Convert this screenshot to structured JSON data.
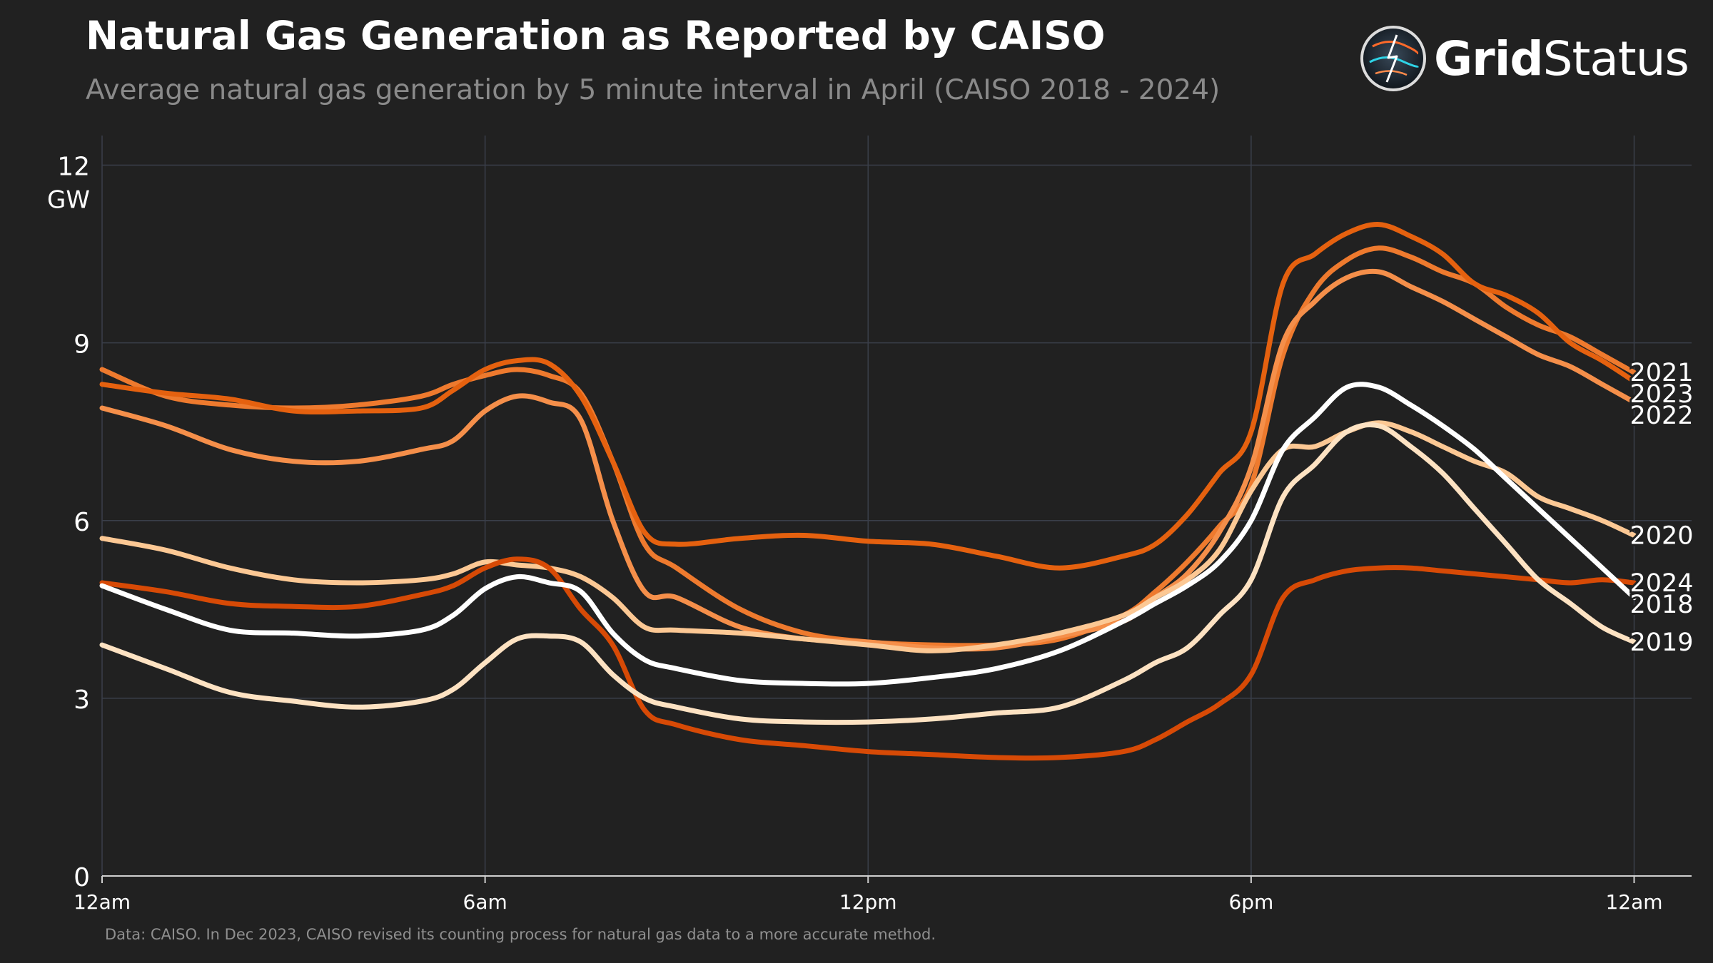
{
  "chart_data": {
    "type": "line",
    "title": "Natural Gas Generation as Reported by CAISO",
    "subtitle": "Average natural gas generation by 5 minute interval in April (CAISO 2018 - 2024)",
    "ylabel": "GW",
    "xlabel": "",
    "ylim": [
      0,
      12.5
    ],
    "xlim": [
      0,
      24.9
    ],
    "grid": true,
    "y_ticks": [
      {
        "value": 0,
        "label": "0"
      },
      {
        "value": 3,
        "label": "3"
      },
      {
        "value": 6,
        "label": "6"
      },
      {
        "value": 9,
        "label": "9"
      },
      {
        "value": 12,
        "label": "12"
      }
    ],
    "x_ticks": [
      {
        "value": 0,
        "label": "12am"
      },
      {
        "value": 6,
        "label": "6am"
      },
      {
        "value": 12,
        "label": "12pm"
      },
      {
        "value": 18,
        "label": "6pm"
      },
      {
        "value": 24,
        "label": "12am"
      }
    ],
    "x": [
      0,
      1,
      2,
      3,
      4,
      5,
      5.5,
      6,
      6.5,
      7,
      7.5,
      8,
      8.5,
      9,
      10,
      11,
      12,
      13,
      14,
      15,
      16,
      16.5,
      17,
      17.5,
      18,
      18.5,
      19,
      19.5,
      20,
      20.5,
      21,
      21.5,
      22,
      22.5,
      23,
      23.5,
      24
    ],
    "series": [
      {
        "name": "2021",
        "color": "#ee7a2e",
        "values": [
          8.55,
          8.1,
          7.95,
          7.9,
          7.95,
          8.1,
          8.3,
          8.45,
          8.55,
          8.45,
          8.15,
          7.0,
          5.6,
          5.2,
          4.5,
          4.1,
          3.95,
          3.9,
          3.9,
          4.0,
          4.4,
          4.8,
          5.3,
          5.9,
          6.6,
          8.8,
          9.9,
          10.4,
          10.6,
          10.45,
          10.2,
          10.0,
          9.6,
          9.3,
          9.1,
          8.8,
          8.5
        ]
      },
      {
        "name": "2023",
        "color": "#e5610f",
        "values": [
          8.3,
          8.15,
          8.05,
          7.85,
          7.85,
          7.9,
          8.2,
          8.55,
          8.7,
          8.65,
          8.1,
          7.0,
          5.8,
          5.6,
          5.7,
          5.75,
          5.65,
          5.6,
          5.4,
          5.2,
          5.4,
          5.6,
          6.1,
          6.8,
          7.5,
          10.0,
          10.5,
          10.85,
          11.0,
          10.8,
          10.5,
          10.0,
          9.8,
          9.5,
          9.0,
          8.7,
          8.35
        ]
      },
      {
        "name": "2022",
        "color": "#f58f4a",
        "values": [
          7.9,
          7.6,
          7.2,
          7.0,
          7.0,
          7.2,
          7.35,
          7.85,
          8.1,
          8.0,
          7.7,
          6.0,
          4.8,
          4.7,
          4.2,
          4.0,
          3.95,
          3.85,
          3.85,
          4.05,
          4.3,
          4.7,
          5.1,
          5.8,
          6.9,
          9.0,
          9.7,
          10.1,
          10.2,
          9.95,
          9.7,
          9.4,
          9.1,
          8.8,
          8.6,
          8.3,
          8.0
        ]
      },
      {
        "name": "2020",
        "color": "#fcc894",
        "values": [
          5.7,
          5.5,
          5.2,
          5.0,
          4.95,
          5.0,
          5.1,
          5.3,
          5.25,
          5.2,
          5.05,
          4.7,
          4.2,
          4.15,
          4.1,
          4.0,
          3.9,
          3.8,
          3.9,
          4.1,
          4.4,
          4.7,
          5.0,
          5.5,
          6.5,
          7.2,
          7.25,
          7.5,
          7.65,
          7.5,
          7.25,
          7.0,
          6.8,
          6.4,
          6.2,
          6.0,
          5.75
        ]
      },
      {
        "name": "2024",
        "color": "#d74a06",
        "values": [
          4.95,
          4.8,
          4.6,
          4.55,
          4.55,
          4.75,
          4.9,
          5.2,
          5.35,
          5.2,
          4.5,
          3.9,
          2.8,
          2.55,
          2.3,
          2.2,
          2.1,
          2.05,
          2.0,
          2.0,
          2.1,
          2.3,
          2.6,
          2.9,
          3.4,
          4.7,
          5.0,
          5.15,
          5.2,
          5.2,
          5.15,
          5.1,
          5.05,
          5.0,
          4.95,
          5.0,
          4.95
        ]
      },
      {
        "name": "2018",
        "color": "#ffffff",
        "values": [
          4.9,
          4.5,
          4.15,
          4.1,
          4.05,
          4.15,
          4.4,
          4.85,
          5.05,
          4.95,
          4.8,
          4.1,
          3.65,
          3.5,
          3.3,
          3.25,
          3.25,
          3.35,
          3.5,
          3.8,
          4.3,
          4.6,
          4.9,
          5.3,
          6.0,
          7.2,
          7.75,
          8.25,
          8.25,
          7.95,
          7.6,
          7.2,
          6.7,
          6.2,
          5.7,
          5.2,
          4.7
        ]
      },
      {
        "name": "2019",
        "color": "#fde2c2",
        "values": [
          3.9,
          3.5,
          3.1,
          2.95,
          2.85,
          2.95,
          3.15,
          3.6,
          4.0,
          4.05,
          3.95,
          3.4,
          3.0,
          2.85,
          2.65,
          2.6,
          2.6,
          2.65,
          2.75,
          2.85,
          3.3,
          3.6,
          3.85,
          4.4,
          5.0,
          6.4,
          6.95,
          7.5,
          7.6,
          7.25,
          6.8,
          6.2,
          5.6,
          5.0,
          4.6,
          4.2,
          3.95
        ]
      }
    ]
  },
  "logo": {
    "text_strong": "Grid",
    "text_light": "Status"
  },
  "footnote": "Data: CAISO. In Dec 2023, CAISO revised its counting process for natural gas data to a more accurate method."
}
